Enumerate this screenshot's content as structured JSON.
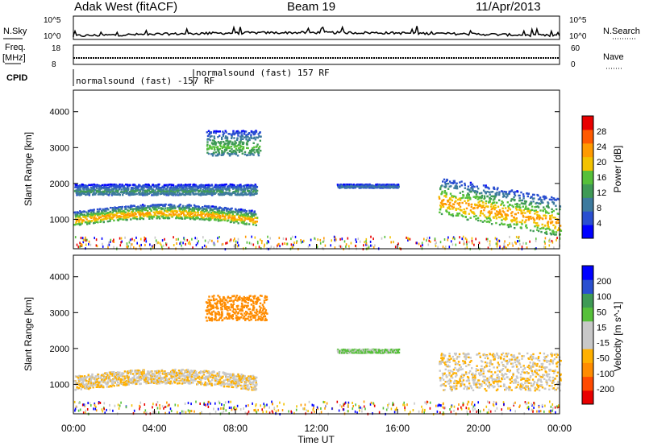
{
  "header": {
    "station": "Adak West (fitACF)",
    "beam": "Beam 19",
    "date": "11/Apr/2013"
  },
  "top_panels": {
    "nsky_label": "N.Sky",
    "nsky_ticks": [
      "10^5",
      "10^0"
    ],
    "nsearch_label": "N.Search",
    "nsearch_ticks": [
      "10^5",
      "10^0"
    ],
    "freq_label": "Freq.",
    "freq_unit": "[MHz]",
    "freq_ticks": [
      "18",
      "8"
    ],
    "nave_label": "Nave",
    "nave_ticks": [
      "60",
      "0"
    ],
    "cpid_label": "CPID",
    "cpid_mode_1": "normalsound (fast) -157 RF",
    "cpid_mode_2": "normalsound (fast) 157 RF"
  },
  "colors": {
    "power": [
      "#0000ff",
      "#2a4fd0",
      "#3d7a9e",
      "#3f9a56",
      "#56c03a",
      "#f2c200",
      "#ff9a00",
      "#ff5a00",
      "#e80000"
    ],
    "velocity": [
      "#e80000",
      "#ff4a00",
      "#ff8c00",
      "#ffb000",
      "#c8c8c8",
      "#c8c8c8",
      "#56c03a",
      "#3f9a56",
      "#2a4fd0",
      "#0000ff"
    ]
  },
  "chart_data": [
    {
      "type": "heatmap",
      "name": "power-panel",
      "ylabel": "Slant Range [km]",
      "x_range": [
        "00:00",
        "24:00"
      ],
      "ylim": [
        180,
        4600
      ],
      "y_ticks": [
        "4000",
        "3000",
        "2000",
        "1000"
      ],
      "colorbar_label": "Power [dB]",
      "colorbar_ticks": [
        "28",
        "24",
        "20",
        "16",
        "12",
        "8",
        "4"
      ],
      "features": [
        {
          "t_start": 0.0,
          "t_end": 9.0,
          "range_km": [
            850,
            1250
          ],
          "peak_db": 22
        },
        {
          "t_start": 0.0,
          "t_end": 9.0,
          "range_km": [
            1700,
            2000
          ],
          "peak_db": 10
        },
        {
          "t_start": 6.5,
          "t_end": 9.2,
          "range_km": [
            2800,
            3500
          ],
          "peak_db": 14
        },
        {
          "t_start": 13.0,
          "t_end": 16.0,
          "range_km": [
            1900,
            2000
          ],
          "peak_db": 8
        },
        {
          "t_start": 18.0,
          "t_end": 24.0,
          "range_km": [
            850,
            1900
          ],
          "peak_db": 22
        }
      ]
    },
    {
      "type": "heatmap",
      "name": "velocity-panel",
      "xlabel": "Time UT",
      "ylabel": "Slant Range [km]",
      "x_ticks": [
        "00:00",
        "04:00",
        "08:00",
        "12:00",
        "16:00",
        "20:00",
        "00:00"
      ],
      "ylim": [
        180,
        4600
      ],
      "y_ticks": [
        "4000",
        "3000",
        "2000",
        "1000"
      ],
      "colorbar_label": "Velocity [m s^-1]",
      "colorbar_ticks": [
        "200",
        "100",
        "50",
        "15",
        "-15",
        "-50",
        "-100",
        "-200"
      ],
      "features": [
        {
          "t_start": 0.0,
          "t_end": 9.0,
          "range_km": [
            850,
            1250
          ],
          "velocity_ms": -10
        },
        {
          "t_start": 6.5,
          "t_end": 9.5,
          "range_km": [
            2800,
            3500
          ],
          "velocity_ms": -80
        },
        {
          "t_start": 13.0,
          "t_end": 16.0,
          "range_km": [
            1900,
            2000
          ],
          "velocity_ms": 20
        },
        {
          "t_start": 18.0,
          "t_end": 24.0,
          "range_km": [
            850,
            1900
          ],
          "velocity_ms": -10
        }
      ]
    }
  ],
  "axis_time": {
    "ticks": [
      "00:00",
      "04:00",
      "08:00",
      "12:00",
      "16:00",
      "20:00",
      "00:00"
    ],
    "label": "Time UT"
  }
}
